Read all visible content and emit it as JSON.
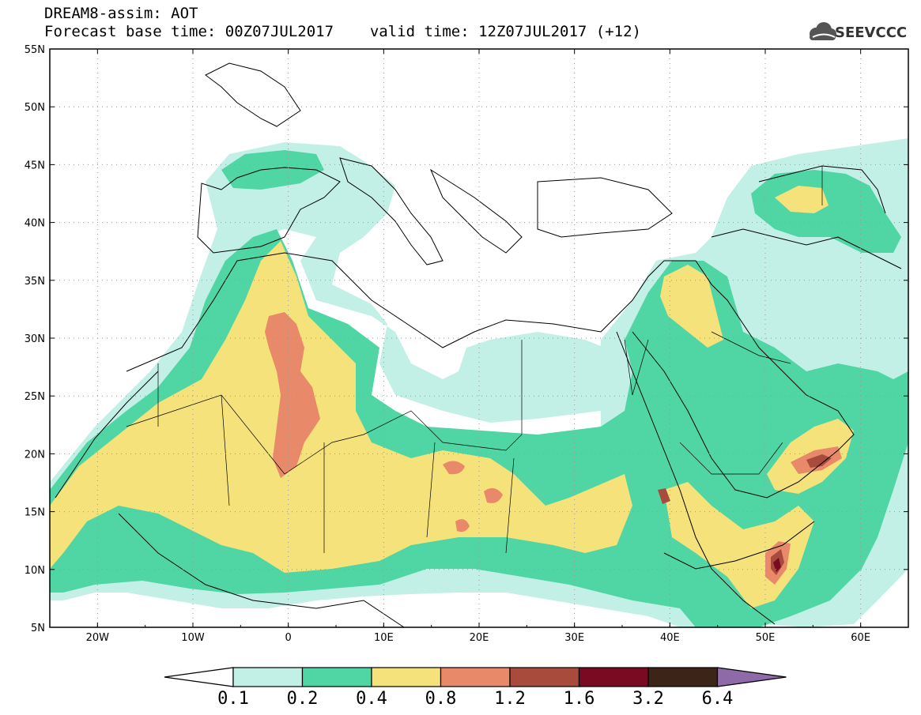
{
  "header": {
    "title": "DREAM8-assim: AOT",
    "base_time": "Forecast base time: 00Z07JUL2017",
    "valid_time": "valid time: 12Z07JUL2017 (+12)",
    "logo_text": "SEEVCCC",
    "logo_icon": "cloud-icon"
  },
  "map": {
    "lat_range": [
      5,
      55
    ],
    "lon_range": [
      -25,
      65
    ],
    "lat_labels": [
      "55N",
      "50N",
      "45N",
      "40N",
      "35N",
      "30N",
      "25N",
      "20N",
      "15N",
      "10N",
      "5N"
    ],
    "lon_labels": [
      "20W",
      "10W",
      "0",
      "10E",
      "20E",
      "30E",
      "40E",
      "50E",
      "60E"
    ],
    "gridlines": "dotted"
  },
  "colorbar": {
    "labels": [
      "0.1",
      "0.2",
      "0.4",
      "0.8",
      "1.2",
      "1.6",
      "3.2",
      "6.4"
    ],
    "colors": [
      "#ffffff",
      "#c2efe6",
      "#4fd6a4",
      "#f5e27a",
      "#e8896a",
      "#a84a3c",
      "#7a0a22",
      "#3c2418",
      "#8e6aa8"
    ]
  }
}
